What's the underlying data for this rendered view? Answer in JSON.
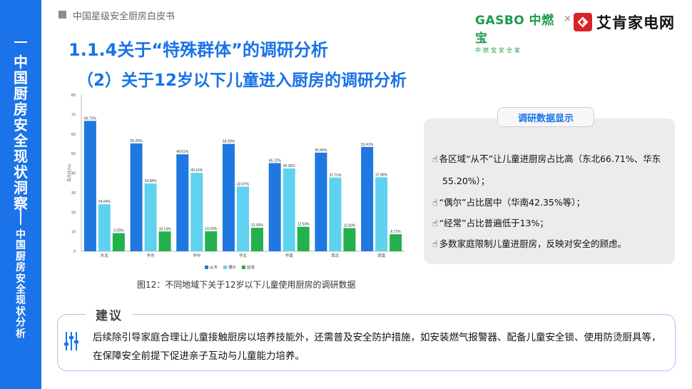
{
  "sidebar": {
    "main_chars": [
      "中",
      "国",
      "厨",
      "房",
      "安",
      "全",
      "现",
      "状",
      "洞",
      "察"
    ],
    "sub_chars": [
      "中",
      "国",
      "厨",
      "房",
      "安",
      "全",
      "现",
      "状",
      "分",
      "析"
    ]
  },
  "header": {
    "doc_title": "中国星级安全厨房白皮书",
    "logo_gasbo": "GASBO 中燃宝",
    "logo_gasbo_sub": "中燃宝安全家",
    "times": "×",
    "logo_aiken": "艾肯家电网"
  },
  "headings": {
    "section": "1.1.4关于“特殊群体”的调研分析",
    "subsection": "（2）关于12岁以下儿童进入厨房的调研分析"
  },
  "chart_caption": "图12：不同地域下关于12岁以下儿童使用厨房的调研数据",
  "chart_data": {
    "type": "bar",
    "categories": [
      "东北",
      "华东",
      "华中",
      "华北",
      "华南",
      "西北",
      "西南"
    ],
    "series": [
      {
        "name": "从不",
        "color": "#1f77e0",
        "values": [
          66.71,
          55.2,
          49.61,
          54.93,
          45.12,
          50.46,
          53.41
        ],
        "labels": [
          "66.71%",
          "55.20%",
          "49.61%",
          "54.93%",
          "45.12%",
          "50.46%",
          "53.41%"
        ]
      },
      {
        "name": "偶尔",
        "color": "#5fd2f0",
        "values": [
          24.04,
          34.68,
          40.16,
          33.07,
          42.35,
          37.71,
          37.88
        ],
        "labels": [
          "24.04%",
          "34.68%",
          "40.16%",
          "33.07%",
          "42.35%",
          "37.71%",
          "37.88%"
        ]
      },
      {
        "name": "经常",
        "color": "#22b14c",
        "values": [
          9.25,
          10.13,
          10.23,
          12.0,
          12.53,
          11.83,
          8.71
        ],
        "labels": [
          "9.25%",
          "10.13%",
          "10.23%",
          "12.00%",
          "12.53%",
          "11.83%",
          "8.71%"
        ]
      }
    ],
    "ylabel": "百分比(%)",
    "ylim": [
      0,
      80
    ],
    "yticks": [
      "0",
      "10",
      "20",
      "30",
      "40",
      "50",
      "60",
      "70",
      "80"
    ],
    "legend_position": "bottom",
    "grid": false
  },
  "info": {
    "title": "调研数据显示",
    "hand": "☝",
    "lines": [
      "各区域“从不”让儿童进厨房占比高（东北66.71%、华东",
      "55.20%）；",
      "“偶尔”占比居中（华南42.35%等）；",
      "“经常”占比普遍低于13%；",
      "多数家庭限制儿童进厨房，反映对安全的顾虑。"
    ]
  },
  "suggestion": {
    "title": "建议",
    "text": "后续除引导家庭合理让儿童接触厨房以培养技能外，还需普及安全防护措施，如安装燃气报警器、配备儿童安全锁、使用防烫厨具等，在保障安全前提下促进亲子互动与儿童能力培养。"
  },
  "colors": {
    "brand_blue": "#1a73e8",
    "gasbo_green": "#1e9b4a",
    "aiken_red": "#d8232a"
  }
}
